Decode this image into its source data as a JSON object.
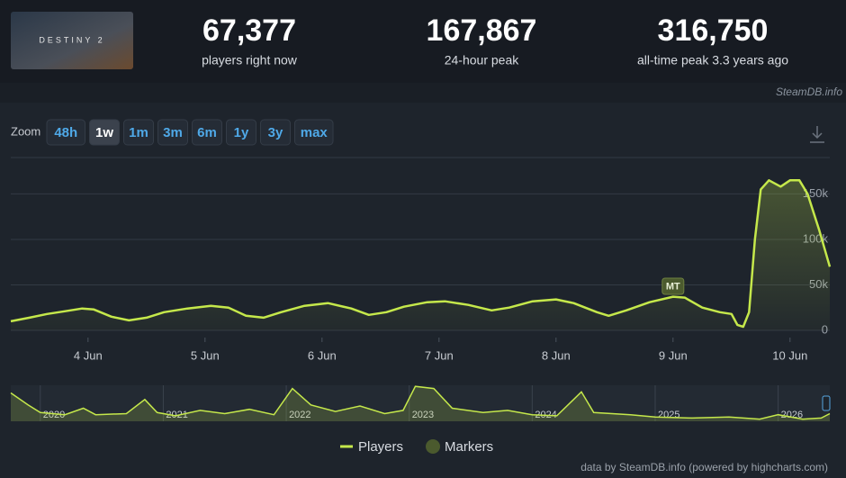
{
  "header": {
    "logo_text": "DESTINY 2",
    "stats": [
      {
        "value": "67,377",
        "label": "players right now"
      },
      {
        "value": "167,867",
        "label": "24-hour peak"
      },
      {
        "value": "316,750",
        "label": "all-time peak 3.3 years ago"
      }
    ],
    "source": "SteamDB.info"
  },
  "zoom": {
    "label": "Zoom",
    "buttons": [
      "48h",
      "1w",
      "1m",
      "3m",
      "6m",
      "1y",
      "3y",
      "max"
    ],
    "active": 1
  },
  "chart_data": {
    "type": "line",
    "x": [
      3.34,
      3.5,
      3.65,
      3.8,
      3.95,
      4.05,
      4.2,
      4.35,
      4.5,
      4.65,
      4.85,
      5.05,
      5.2,
      5.35,
      5.5,
      5.65,
      5.85,
      6.05,
      6.25,
      6.4,
      6.55,
      6.7,
      6.9,
      7.05,
      7.25,
      7.45,
      7.6,
      7.8,
      8.0,
      8.15,
      8.35,
      8.45,
      8.6,
      8.8,
      9.0,
      9.1,
      9.25,
      9.4,
      9.5,
      9.55,
      9.6,
      9.65,
      9.7,
      9.75,
      9.82,
      9.92,
      10.0,
      10.08,
      10.15,
      10.25,
      10.34
    ],
    "series": [
      {
        "name": "Players",
        "color": "#c5e84b",
        "values": [
          10000,
          14000,
          18000,
          21000,
          24000,
          23000,
          15000,
          11000,
          14000,
          20000,
          24000,
          27000,
          25000,
          16000,
          14000,
          20000,
          27000,
          30000,
          24000,
          17000,
          20000,
          26000,
          31000,
          32000,
          28000,
          22000,
          25000,
          32000,
          34000,
          30000,
          20000,
          16000,
          22000,
          31000,
          37000,
          36000,
          25000,
          20000,
          18000,
          6000,
          4000,
          20000,
          100000,
          155000,
          165000,
          158000,
          165000,
          165000,
          150000,
          110000,
          70000
        ]
      }
    ],
    "xlim": [
      3.34,
      10.34
    ],
    "xticks": [
      {
        "value": 4,
        "label": "4 Jun"
      },
      {
        "value": 5,
        "label": "5 Jun"
      },
      {
        "value": 6,
        "label": "6 Jun"
      },
      {
        "value": 7,
        "label": "7 Jun"
      },
      {
        "value": 8,
        "label": "8 Jun"
      },
      {
        "value": 9,
        "label": "9 Jun"
      },
      {
        "value": 10,
        "label": "10 Jun"
      }
    ],
    "ylim": [
      0,
      190000
    ],
    "yticks": [
      0,
      {
        "value": 50000,
        "label": "50k"
      },
      {
        "value": 100000,
        "label": "100k"
      },
      {
        "value": 150000,
        "label": "150k"
      }
    ],
    "grid": true,
    "markers": [
      {
        "x": 9.0,
        "label": "MT"
      }
    ],
    "marker_legend": {
      "name": "Markers",
      "color": "#4b5a2e"
    },
    "navigator": {
      "x": [
        2019.76,
        2019.9,
        2020.0,
        2020.2,
        2020.35,
        2020.45,
        2020.7,
        2020.85,
        2020.95,
        2021.1,
        2021.3,
        2021.5,
        2021.7,
        2021.9,
        2022.05,
        2022.2,
        2022.4,
        2022.6,
        2022.8,
        2022.95,
        2023.05,
        2023.2,
        2023.35,
        2023.6,
        2023.8,
        2024.0,
        2024.2,
        2024.4,
        2024.5,
        2024.8,
        2025.0,
        2025.3,
        2025.6,
        2025.85,
        2026.0,
        2026.2,
        2026.35,
        2026.42
      ],
      "values": [
        260000,
        150000,
        80000,
        60000,
        120000,
        60000,
        70000,
        200000,
        80000,
        50000,
        100000,
        70000,
        110000,
        60000,
        300000,
        150000,
        90000,
        140000,
        70000,
        100000,
        320000,
        300000,
        120000,
        80000,
        100000,
        60000,
        50000,
        270000,
        80000,
        60000,
        40000,
        30000,
        40000,
        20000,
        60000,
        20000,
        30000,
        70000
      ],
      "xlim": [
        2019.76,
        2026.42
      ],
      "ylim": [
        0,
        330000
      ],
      "xticks": [
        {
          "value": 2020,
          "label": "2020"
        },
        {
          "value": 2021,
          "label": "2021"
        },
        {
          "value": 2022,
          "label": "2022"
        },
        {
          "value": 2023,
          "label": "2023"
        },
        {
          "value": 2024,
          "label": "2024"
        },
        {
          "value": 2025,
          "label": "2025"
        },
        {
          "value": 2026,
          "label": "2026"
        }
      ]
    }
  },
  "footer": "data by SteamDB.info (powered by highcharts.com)"
}
